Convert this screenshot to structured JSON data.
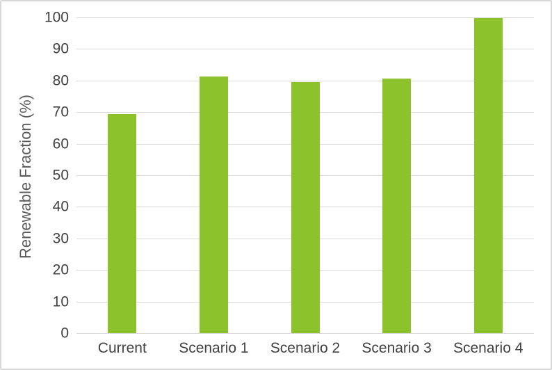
{
  "chart_data": {
    "type": "bar",
    "categories": [
      "Current",
      "Scenario 1",
      "Scenario 2",
      "Scenario 3",
      "Scenario 4"
    ],
    "values": [
      69.4,
      81.2,
      79.5,
      80.6,
      99.8
    ],
    "title": "",
    "xlabel": "",
    "ylabel": "Renewable Fraction (%)",
    "ylim": [
      0,
      100
    ],
    "yticks": [
      0,
      10,
      20,
      30,
      40,
      50,
      60,
      70,
      80,
      90,
      100
    ],
    "grid": true,
    "legend": "none",
    "colors": {
      "bar": "#8cc32c",
      "gridline": "#d9d9d9",
      "tick_label": "#404040",
      "axis_title": "#595959",
      "frame_border": "#d8d8d8",
      "background": "#ffffff"
    }
  }
}
